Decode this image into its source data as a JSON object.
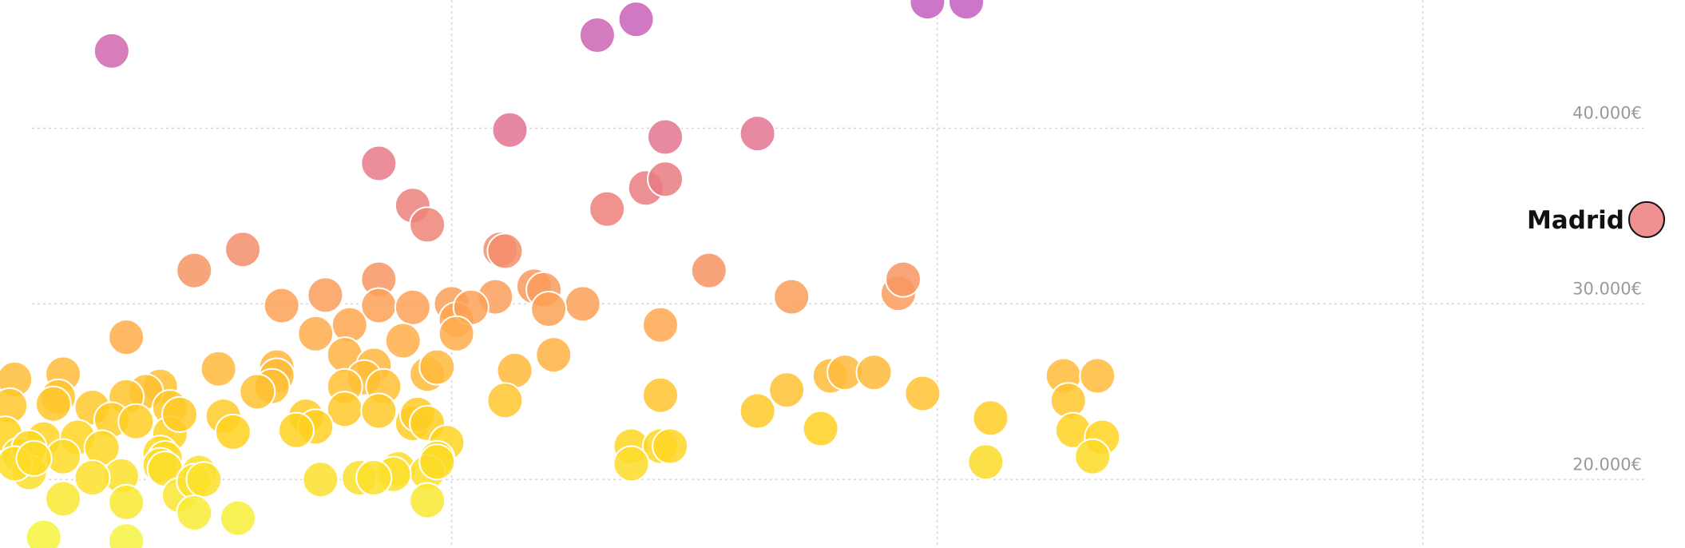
{
  "chart_data": {
    "type": "scatter",
    "title": "",
    "xlabel": "",
    "ylabel": "",
    "x_grid": [
      1,
      2,
      3
    ],
    "xlim": [
      0.07,
      3.54
    ],
    "ylim": [
      16100,
      47300
    ],
    "y_ticks": [
      {
        "value": 40000,
        "label": "40.000€"
      },
      {
        "value": 30000,
        "label": "30.000€"
      },
      {
        "value": 20000,
        "label": "20.000€"
      }
    ],
    "grid": true,
    "legend": "none",
    "color_scale": {
      "low": 16500,
      "high": 47000,
      "stops": [
        "#f5f53f",
        "#ffd21f",
        "#ffa84e",
        "#ee8278",
        "#e07096",
        "#c45ec0"
      ]
    },
    "highlight": {
      "label": "Madrid",
      "y": 34800,
      "color": "#f09090"
    },
    "points": [
      [
        0.3,
        44400
      ],
      [
        1.3,
        45300
      ],
      [
        1.38,
        46200
      ],
      [
        1.98,
        47200
      ],
      [
        2.06,
        47200
      ],
      [
        1.12,
        39900
      ],
      [
        1.63,
        39700
      ],
      [
        0.85,
        38000
      ],
      [
        1.44,
        39500
      ],
      [
        0.92,
        35600
      ],
      [
        0.95,
        34500
      ],
      [
        1.32,
        35400
      ],
      [
        1.4,
        36600
      ],
      [
        1.44,
        37100
      ],
      [
        0.57,
        33100
      ],
      [
        1.1,
        33100
      ],
      [
        1.11,
        33000
      ],
      [
        0.47,
        31900
      ],
      [
        1.53,
        31900
      ],
      [
        0.85,
        31400
      ],
      [
        1.17,
        31000
      ],
      [
        1.19,
        30800
      ],
      [
        1.09,
        30400
      ],
      [
        1.0,
        30000
      ],
      [
        0.65,
        29900
      ],
      [
        0.74,
        30500
      ],
      [
        0.85,
        29900
      ],
      [
        0.92,
        29800
      ],
      [
        1.01,
        29100
      ],
      [
        1.04,
        29800
      ],
      [
        1.27,
        30000
      ],
      [
        1.2,
        29700
      ],
      [
        1.7,
        30400
      ],
      [
        1.92,
        30600
      ],
      [
        1.93,
        31400
      ],
      [
        1.43,
        28800
      ],
      [
        0.33,
        28100
      ],
      [
        0.72,
        28300
      ],
      [
        0.79,
        28800
      ],
      [
        0.9,
        27900
      ],
      [
        1.01,
        28300
      ],
      [
        0.78,
        27100
      ],
      [
        1.21,
        27100
      ],
      [
        0.1,
        25700
      ],
      [
        0.2,
        26000
      ],
      [
        0.52,
        26300
      ],
      [
        0.64,
        26400
      ],
      [
        0.84,
        26500
      ],
      [
        0.95,
        26000
      ],
      [
        0.82,
        25800
      ],
      [
        0.86,
        25300
      ],
      [
        1.13,
        26200
      ],
      [
        0.64,
        25900
      ],
      [
        0.97,
        26400
      ],
      [
        0.63,
        25300
      ],
      [
        0.78,
        25300
      ],
      [
        0.6,
        25000
      ],
      [
        0.4,
        25300
      ],
      [
        0.37,
        25000
      ],
      [
        0.33,
        24700
      ],
      [
        0.19,
        24700
      ],
      [
        0.26,
        24100
      ],
      [
        0.09,
        24200
      ],
      [
        0.18,
        24300
      ],
      [
        0.42,
        24100
      ],
      [
        1.11,
        24500
      ],
      [
        1.43,
        24800
      ],
      [
        1.69,
        25100
      ],
      [
        1.78,
        25900
      ],
      [
        1.81,
        26100
      ],
      [
        1.87,
        26100
      ],
      [
        1.97,
        24900
      ],
      [
        2.26,
        25900
      ],
      [
        2.33,
        25900
      ],
      [
        2.27,
        24500
      ],
      [
        0.53,
        23600
      ],
      [
        0.78,
        24000
      ],
      [
        0.85,
        23900
      ],
      [
        0.92,
        23200
      ],
      [
        0.55,
        22700
      ],
      [
        0.7,
        23600
      ],
      [
        0.72,
        23000
      ],
      [
        0.68,
        22800
      ],
      [
        0.93,
        23700
      ],
      [
        0.95,
        23200
      ],
      [
        0.99,
        22100
      ],
      [
        0.08,
        22600
      ],
      [
        0.16,
        22300
      ],
      [
        0.23,
        22400
      ],
      [
        0.3,
        23400
      ],
      [
        0.35,
        23300
      ],
      [
        0.42,
        22600
      ],
      [
        0.44,
        23700
      ],
      [
        1.63,
        23900
      ],
      [
        2.11,
        23500
      ],
      [
        1.76,
        22900
      ],
      [
        2.28,
        22800
      ],
      [
        2.34,
        22400
      ],
      [
        0.11,
        21400
      ],
      [
        0.13,
        21800
      ],
      [
        0.2,
        21300
      ],
      [
        0.28,
        21800
      ],
      [
        0.4,
        21500
      ],
      [
        0.41,
        21200
      ],
      [
        0.4,
        20800
      ],
      [
        0.48,
        20400
      ],
      [
        0.32,
        20200
      ],
      [
        0.26,
        20100
      ],
      [
        0.13,
        20400
      ],
      [
        0.1,
        20900
      ],
      [
        0.14,
        21200
      ],
      [
        0.41,
        20600
      ],
      [
        0.97,
        21200
      ],
      [
        1.37,
        21900
      ],
      [
        1.43,
        21900
      ],
      [
        1.45,
        21900
      ],
      [
        0.89,
        20600
      ],
      [
        0.95,
        20400
      ],
      [
        0.97,
        21000
      ],
      [
        0.88,
        20300
      ],
      [
        0.81,
        20100
      ],
      [
        2.1,
        21000
      ],
      [
        2.32,
        21300
      ],
      [
        1.37,
        20900
      ],
      [
        0.2,
        18900
      ],
      [
        0.33,
        18700
      ],
      [
        0.44,
        19100
      ],
      [
        0.47,
        19900
      ],
      [
        0.49,
        20000
      ],
      [
        0.73,
        20000
      ],
      [
        0.84,
        20100
      ],
      [
        0.95,
        18800
      ],
      [
        0.47,
        18100
      ],
      [
        0.56,
        17800
      ],
      [
        0.16,
        16700
      ],
      [
        0.33,
        16500
      ]
    ]
  }
}
